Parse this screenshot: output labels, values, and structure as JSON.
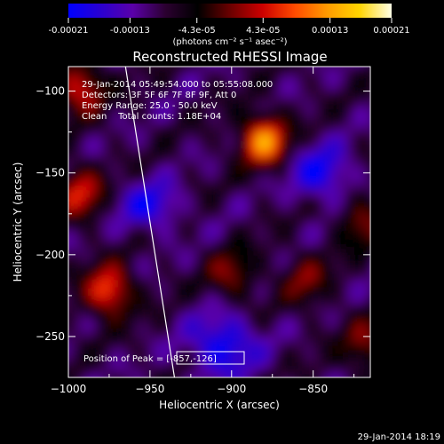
{
  "colorbar": {
    "unit_label": "(photons cm⁻² s⁻¹ asec⁻²)",
    "ticks": [
      "-0.00021",
      "-0.00013",
      "-4.3e-05",
      "4.3e-05",
      "0.00013",
      "0.00021"
    ],
    "tick_values": [
      -0.00021,
      -0.00013,
      -4.3e-05,
      4.3e-05,
      0.00013,
      0.00021
    ],
    "range": [
      -0.00021,
      0.00021
    ],
    "colors": [
      "#0000ff",
      "#2a00d0",
      "#5a00a8",
      "#2b0030",
      "#000000",
      "#6a0000",
      "#cc0000",
      "#ff4a00",
      "#ff9a00",
      "#ffd400",
      "#ffffe6"
    ]
  },
  "chart_data": {
    "type": "heatmap",
    "title": "Reconstructed RHESSI Image",
    "xlabel": "Heliocentric X (arcsec)",
    "ylabel": "Heliocentric Y (arcsec)",
    "xlim": [
      -1000,
      -815
    ],
    "ylim": [
      -275,
      -85
    ],
    "x_ticks": [
      -1000,
      -950,
      -900,
      -850
    ],
    "y_ticks": [
      -100,
      -150,
      -200,
      -250
    ],
    "x_tick_labels": [
      "−1000",
      "−950",
      "−900",
      "−850"
    ],
    "y_tick_labels": [
      "−100",
      "−150",
      "−200",
      "−250"
    ],
    "annotations": [
      "29-Jan-2014 05:49:54.000 to 05:55:08.000",
      "Detectors: 3F 5F 6F 7F 8F 9F, Att 0",
      "Energy Range: 25.0 - 50.0 keV",
      "Clean    Total counts: 1.18E+04"
    ],
    "peak_label": "Position of Peak = [-857,-126]",
    "peak_position": [
      -857,
      -126
    ],
    "limb_line": [
      [
        -965,
        -85
      ],
      [
        -935,
        -275
      ]
    ],
    "hotspots": [
      {
        "x": -880,
        "y": -130,
        "value": 0.00021
      },
      {
        "x": -975,
        "y": -222,
        "value": 0.00018
      },
      {
        "x": -992,
        "y": -98,
        "value": 0.00015
      },
      {
        "x": -993,
        "y": -162,
        "value": 0.00014
      },
      {
        "x": -820,
        "y": -180,
        "value": 0.0001
      },
      {
        "x": -818,
        "y": -255,
        "value": 0.0001
      },
      {
        "x": -855,
        "y": -215,
        "value": 9e-05
      },
      {
        "x": -900,
        "y": -212,
        "value": 0.0001
      }
    ]
  },
  "timestamp": "29-Jan-2014 18:19"
}
